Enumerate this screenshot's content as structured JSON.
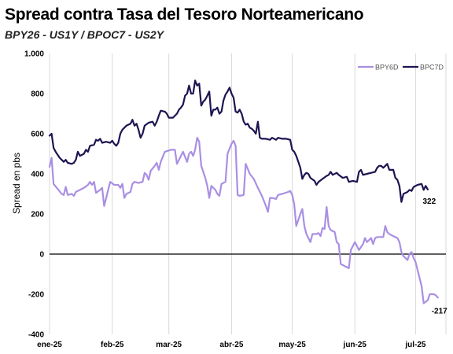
{
  "chart_data": {
    "type": "line",
    "title": "Spread contra Tasa del Tesoro Norteamericano",
    "subtitle": "BPY26 - US1Y / BPOC7 - US2Y",
    "ylabel": "Spread en pbs",
    "xlabel": "",
    "ylim": [
      -400,
      1000
    ],
    "yticks": [
      -400,
      -200,
      0,
      200,
      400,
      600,
      800,
      1000
    ],
    "ytick_labels": [
      "-400",
      "-200",
      "0",
      "200",
      "400",
      "600",
      "800",
      "1.000"
    ],
    "xlim": [
      0,
      196
    ],
    "xticks": [
      {
        "label": "ene-25",
        "pos": 0
      },
      {
        "label": "feb-25",
        "pos": 31
      },
      {
        "label": "mar-25",
        "pos": 59
      },
      {
        "label": "abr-25",
        "pos": 90
      },
      {
        "label": "may-25",
        "pos": 120
      },
      {
        "label": "jun-25",
        "pos": 151
      },
      {
        "label": "jul-25",
        "pos": 181
      }
    ],
    "grid": "vertical",
    "legend_position": "top-right",
    "series": [
      {
        "name": "BPY6D",
        "color": "#a98fe3",
        "end_label": "-217",
        "points": [
          [
            0,
            435
          ],
          [
            1,
            480
          ],
          [
            2,
            350
          ],
          [
            4,
            325
          ],
          [
            6,
            300
          ],
          [
            7,
            295
          ],
          [
            8,
            335
          ],
          [
            9,
            295
          ],
          [
            11,
            300
          ],
          [
            12,
            290
          ],
          [
            13,
            310
          ],
          [
            15,
            320
          ],
          [
            17,
            330
          ],
          [
            19,
            345
          ],
          [
            20,
            360
          ],
          [
            21,
            345
          ],
          [
            22,
            360
          ],
          [
            23,
            305
          ],
          [
            25,
            320
          ],
          [
            26,
            330
          ],
          [
            27,
            240
          ],
          [
            28,
            280
          ],
          [
            30,
            360
          ],
          [
            32,
            345
          ],
          [
            34,
            345
          ],
          [
            35,
            330
          ],
          [
            36,
            350
          ],
          [
            37,
            280
          ],
          [
            38,
            300
          ],
          [
            40,
            310
          ],
          [
            41,
            350
          ],
          [
            42,
            360
          ],
          [
            44,
            355
          ],
          [
            46,
            360
          ],
          [
            47,
            405
          ],
          [
            48,
            395
          ],
          [
            49,
            370
          ],
          [
            50,
            415
          ],
          [
            52,
            440
          ],
          [
            53,
            455
          ],
          [
            54,
            420
          ],
          [
            55,
            460
          ],
          [
            57,
            510
          ],
          [
            60,
            520
          ],
          [
            62,
            520
          ],
          [
            63,
            450
          ],
          [
            65,
            490
          ],
          [
            66,
            510
          ],
          [
            68,
            460
          ],
          [
            69,
            500
          ],
          [
            70,
            510
          ],
          [
            71,
            490
          ],
          [
            72,
            520
          ],
          [
            73,
            580
          ],
          [
            74,
            560
          ],
          [
            75,
            440
          ],
          [
            76,
            410
          ],
          [
            77,
            380
          ],
          [
            78,
            340
          ],
          [
            79,
            280
          ],
          [
            80,
            340
          ],
          [
            82,
            320
          ],
          [
            83,
            300
          ],
          [
            84,
            290
          ],
          [
            85,
            350
          ],
          [
            87,
            360
          ],
          [
            88,
            500
          ],
          [
            90,
            550
          ],
          [
            91,
            565
          ],
          [
            92,
            540
          ],
          [
            93,
            295
          ],
          [
            94,
            290
          ],
          [
            96,
            295
          ],
          [
            97,
            450
          ],
          [
            99,
            400
          ],
          [
            101,
            375
          ],
          [
            103,
            330
          ],
          [
            105,
            290
          ],
          [
            106,
            265
          ],
          [
            107,
            240
          ],
          [
            108,
            210
          ],
          [
            109,
            280
          ],
          [
            110,
            280
          ],
          [
            112,
            275
          ],
          [
            113,
            295
          ],
          [
            115,
            300
          ],
          [
            118,
            310
          ],
          [
            119,
            315
          ],
          [
            120,
            295
          ],
          [
            121,
            250
          ],
          [
            122,
            140
          ],
          [
            124,
            200
          ],
          [
            125,
            225
          ],
          [
            126,
            140
          ],
          [
            127,
            100
          ],
          [
            128,
            80
          ],
          [
            129,
            60
          ],
          [
            130,
            100
          ],
          [
            132,
            100
          ],
          [
            133,
            105
          ],
          [
            134,
            90
          ],
          [
            135,
            130
          ],
          [
            136,
            125
          ],
          [
            137,
            235
          ],
          [
            138,
            140
          ],
          [
            139,
            120
          ],
          [
            141,
            110
          ],
          [
            142,
            60
          ],
          [
            143,
            50
          ],
          [
            144,
            -50
          ],
          [
            145,
            -55
          ],
          [
            147,
            -65
          ],
          [
            148,
            -70
          ],
          [
            149,
            20
          ],
          [
            150,
            40
          ],
          [
            151,
            60
          ],
          [
            152,
            40
          ],
          [
            153,
            20
          ],
          [
            155,
            50
          ],
          [
            156,
            80
          ],
          [
            157,
            60
          ],
          [
            158,
            70
          ],
          [
            159,
            80
          ],
          [
            160,
            50
          ],
          [
            161,
            80
          ],
          [
            162,
            85
          ],
          [
            164,
            85
          ],
          [
            165,
            85
          ],
          [
            166,
            140
          ],
          [
            167,
            110
          ],
          [
            168,
            100
          ],
          [
            170,
            90
          ],
          [
            172,
            80
          ],
          [
            173,
            60
          ],
          [
            174,
            10
          ],
          [
            175,
            -10
          ],
          [
            176,
            -20
          ],
          [
            177,
            -30
          ],
          [
            178,
            0
          ],
          [
            179,
            10
          ],
          [
            180,
            -20
          ],
          [
            181,
            -40
          ],
          [
            182,
            -80
          ],
          [
            183,
            -120
          ],
          [
            184,
            -160
          ],
          [
            185,
            -245
          ],
          [
            187,
            -230
          ],
          [
            188,
            -200
          ],
          [
            190,
            -200
          ],
          [
            191,
            -205
          ],
          [
            192,
            -217
          ]
        ]
      },
      {
        "name": "BPC7D",
        "color": "#1c1551",
        "end_label": "322",
        "points": [
          [
            0,
            590
          ],
          [
            1,
            600
          ],
          [
            2,
            530
          ],
          [
            3,
            510
          ],
          [
            5,
            480
          ],
          [
            7,
            460
          ],
          [
            8,
            470
          ],
          [
            9,
            455
          ],
          [
            11,
            450
          ],
          [
            12,
            455
          ],
          [
            13,
            470
          ],
          [
            14,
            510
          ],
          [
            15,
            490
          ],
          [
            17,
            500
          ],
          [
            18,
            520
          ],
          [
            19,
            510
          ],
          [
            20,
            540
          ],
          [
            22,
            545
          ],
          [
            23,
            570
          ],
          [
            24,
            565
          ],
          [
            25,
            575
          ],
          [
            26,
            555
          ],
          [
            28,
            560
          ],
          [
            30,
            555
          ],
          [
            31,
            565
          ],
          [
            32,
            550
          ],
          [
            33,
            540
          ],
          [
            34,
            555
          ],
          [
            35,
            600
          ],
          [
            36,
            620
          ],
          [
            38,
            640
          ],
          [
            40,
            650
          ],
          [
            41,
            670
          ],
          [
            42,
            640
          ],
          [
            43,
            650
          ],
          [
            44,
            620
          ],
          [
            45,
            580
          ],
          [
            46,
            600
          ],
          [
            47,
            640
          ],
          [
            49,
            655
          ],
          [
            51,
            660
          ],
          [
            52,
            640
          ],
          [
            53,
            660
          ],
          [
            54,
            690
          ],
          [
            55,
            715
          ],
          [
            57,
            710
          ],
          [
            58,
            700
          ],
          [
            59,
            680
          ],
          [
            60,
            680
          ],
          [
            61,
            680
          ],
          [
            63,
            700
          ],
          [
            64,
            720
          ],
          [
            65,
            730
          ],
          [
            66,
            745
          ],
          [
            67,
            790
          ],
          [
            68,
            800
          ],
          [
            69,
            840
          ],
          [
            70,
            800
          ],
          [
            71,
            800
          ],
          [
            72,
            865
          ],
          [
            73,
            840
          ],
          [
            74,
            850
          ],
          [
            75,
            740
          ],
          [
            76,
            760
          ],
          [
            77,
            770
          ],
          [
            78,
            790
          ],
          [
            79,
            810
          ],
          [
            80,
            690
          ],
          [
            81,
            720
          ],
          [
            82,
            720
          ],
          [
            83,
            730
          ],
          [
            84,
            700
          ],
          [
            85,
            710
          ],
          [
            86,
            765
          ],
          [
            87,
            795
          ],
          [
            88,
            810
          ],
          [
            89,
            830
          ],
          [
            90,
            800
          ],
          [
            91,
            780
          ],
          [
            92,
            710
          ],
          [
            93,
            705
          ],
          [
            94,
            720
          ],
          [
            95,
            700
          ],
          [
            96,
            660
          ],
          [
            97,
            645
          ],
          [
            98,
            650
          ],
          [
            99,
            630
          ],
          [
            100,
            625
          ],
          [
            101,
            615
          ],
          [
            102,
            600
          ],
          [
            103,
            660
          ],
          [
            104,
            580
          ],
          [
            105,
            575
          ],
          [
            107,
            575
          ],
          [
            109,
            570
          ],
          [
            110,
            580
          ],
          [
            112,
            570
          ],
          [
            113,
            580
          ],
          [
            115,
            575
          ],
          [
            117,
            575
          ],
          [
            119,
            570
          ],
          [
            120,
            520
          ],
          [
            121,
            510
          ],
          [
            122,
            490
          ],
          [
            123,
            460
          ],
          [
            124,
            430
          ],
          [
            125,
            375
          ],
          [
            126,
            395
          ],
          [
            127,
            405
          ],
          [
            128,
            400
          ],
          [
            129,
            380
          ],
          [
            131,
            365
          ],
          [
            132,
            345
          ],
          [
            133,
            360
          ],
          [
            135,
            375
          ],
          [
            137,
            390
          ],
          [
            138,
            395
          ],
          [
            139,
            410
          ],
          [
            140,
            395
          ],
          [
            142,
            405
          ],
          [
            143,
            395
          ],
          [
            145,
            380
          ],
          [
            147,
            385
          ],
          [
            148,
            360
          ],
          [
            150,
            365
          ],
          [
            152,
            360
          ],
          [
            153,
            410
          ],
          [
            154,
            420
          ],
          [
            155,
            395
          ],
          [
            157,
            400
          ],
          [
            159,
            405
          ],
          [
            161,
            410
          ],
          [
            162,
            430
          ],
          [
            163,
            440
          ],
          [
            164,
            440
          ],
          [
            165,
            430
          ],
          [
            166,
            440
          ],
          [
            167,
            450
          ],
          [
            168,
            420
          ],
          [
            170,
            420
          ],
          [
            171,
            380
          ],
          [
            172,
            370
          ],
          [
            173,
            340
          ],
          [
            174,
            260
          ],
          [
            175,
            300
          ],
          [
            177,
            310
          ],
          [
            178,
            320
          ],
          [
            179,
            315
          ],
          [
            180,
            335
          ],
          [
            182,
            345
          ],
          [
            184,
            350
          ],
          [
            185,
            320
          ],
          [
            186,
            340
          ],
          [
            187,
            322
          ]
        ]
      }
    ]
  }
}
